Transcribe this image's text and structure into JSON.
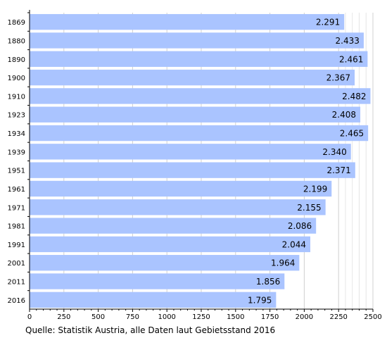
{
  "chart_data": {
    "type": "bar",
    "orientation": "horizontal",
    "categories": [
      "1869",
      "1880",
      "1890",
      "1900",
      "1910",
      "1923",
      "1934",
      "1939",
      "1951",
      "1961",
      "1971",
      "1981",
      "1991",
      "2001",
      "2011",
      "2016"
    ],
    "values": [
      2291,
      2433,
      2461,
      2367,
      2482,
      2408,
      2465,
      2340,
      2371,
      2199,
      2155,
      2086,
      2044,
      1964,
      1856,
      1795
    ],
    "value_labels": [
      "2.291",
      "2.433",
      "2.461",
      "2.367",
      "2.482",
      "2.408",
      "2.465",
      "2.340",
      "2.371",
      "2.199",
      "2.155",
      "2.086",
      "2.044",
      "1.964",
      "1.856",
      "1.795"
    ],
    "xlim": [
      0,
      2500
    ],
    "xticks": [
      0,
      250,
      500,
      750,
      1000,
      1250,
      1500,
      1750,
      2000,
      2250,
      2500
    ],
    "grid_minor_start": 2250,
    "grid_minor_step": 50,
    "bar_color": "#aac4ff",
    "title": "",
    "xlabel": "",
    "ylabel": ""
  },
  "caption": "Quelle: Statistik Austria, alle Daten laut Gebietsstand 2016"
}
